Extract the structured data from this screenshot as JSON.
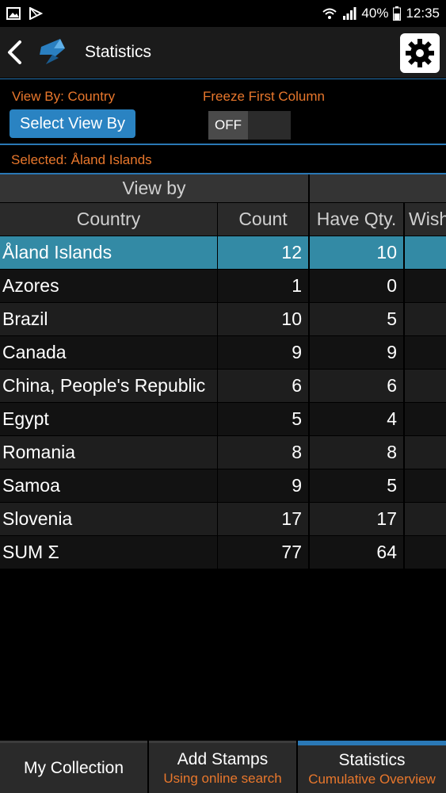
{
  "status_bar": {
    "battery": "40%",
    "time": "12:35"
  },
  "app_bar": {
    "title": "Statistics"
  },
  "controls": {
    "view_by_label": "View By: Country",
    "select_view_by_button": "Select View By",
    "freeze_label": "Freeze First Column",
    "freeze_toggle": "OFF"
  },
  "selected": "Selected: Åland Islands",
  "table": {
    "group_header": "View by",
    "columns": [
      "Country",
      "Count",
      "Have Qty.",
      "Wish"
    ],
    "rows": [
      {
        "country": "Åland Islands",
        "count": "12",
        "have": "10"
      },
      {
        "country": "Azores",
        "count": "1",
        "have": "0"
      },
      {
        "country": "Brazil",
        "count": "10",
        "have": "5"
      },
      {
        "country": "Canada",
        "count": "9",
        "have": "9"
      },
      {
        "country": "China, People's Republic",
        "count": "6",
        "have": "6"
      },
      {
        "country": "Egypt",
        "count": "5",
        "have": "4"
      },
      {
        "country": "Romania",
        "count": "8",
        "have": "8"
      },
      {
        "country": "Samoa",
        "count": "9",
        "have": "5"
      },
      {
        "country": "Slovenia",
        "count": "17",
        "have": "17"
      },
      {
        "country": "SUM Σ",
        "count": "77",
        "have": "64"
      }
    ]
  },
  "tabs": [
    {
      "label": "My Collection",
      "sub": ""
    },
    {
      "label": "Add Stamps",
      "sub": "Using online search"
    },
    {
      "label": "Statistics",
      "sub": "Cumulative Overview"
    }
  ],
  "colors": {
    "accent_orange": "#e8772c",
    "accent_blue": "#2a78b5",
    "selected_row": "#338aa5",
    "button_blue": "#2a83c2"
  }
}
